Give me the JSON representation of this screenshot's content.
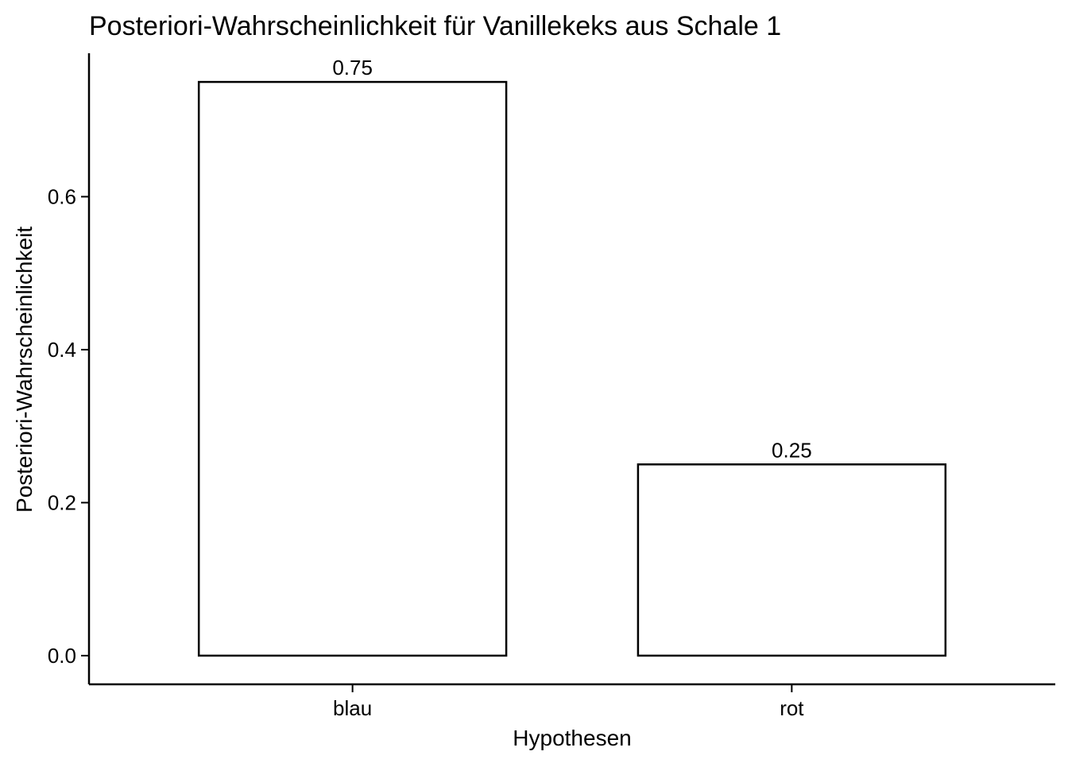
{
  "chart_data": {
    "type": "bar",
    "title": "Posteriori-Wahrscheinlichkeit für Vanillekeks aus Schale 1",
    "xlabel": "Hypothesen",
    "ylabel": "Posteriori-Wahrscheinlichkeit",
    "categories": [
      "blau",
      "rot"
    ],
    "values": [
      0.75,
      0.25
    ],
    "data_labels": [
      "0.75",
      "0.25"
    ],
    "yticks": [
      0.0,
      0.2,
      0.4,
      0.6
    ],
    "ytick_labels": [
      "0.0",
      "0.2",
      "0.4",
      "0.6"
    ],
    "ylim": [
      -0.0375,
      0.7875
    ],
    "grid": false,
    "legend": "none",
    "colors": {
      "bar_fill": "#ffffff",
      "bar_stroke": "#000000",
      "axis": "#000000"
    }
  }
}
